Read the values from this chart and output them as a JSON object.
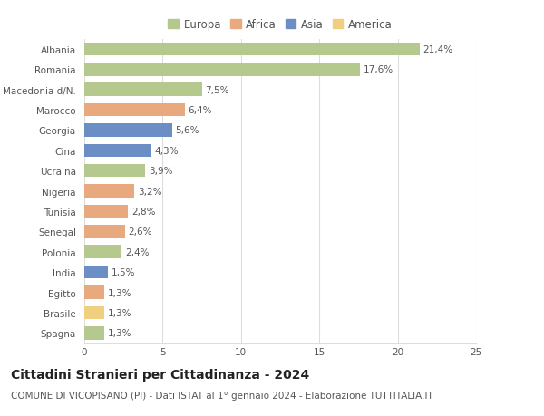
{
  "countries": [
    "Albania",
    "Romania",
    "Macedonia d/N.",
    "Marocco",
    "Georgia",
    "Cina",
    "Ucraina",
    "Nigeria",
    "Tunisia",
    "Senegal",
    "Polonia",
    "India",
    "Egitto",
    "Brasile",
    "Spagna"
  ],
  "values": [
    21.4,
    17.6,
    7.5,
    6.4,
    5.6,
    4.3,
    3.9,
    3.2,
    2.8,
    2.6,
    2.4,
    1.5,
    1.3,
    1.3,
    1.3
  ],
  "labels": [
    "21,4%",
    "17,6%",
    "7,5%",
    "6,4%",
    "5,6%",
    "4,3%",
    "3,9%",
    "3,2%",
    "2,8%",
    "2,6%",
    "2,4%",
    "1,5%",
    "1,3%",
    "1,3%",
    "1,3%"
  ],
  "continents": [
    "Europa",
    "Europa",
    "Europa",
    "Africa",
    "Asia",
    "Asia",
    "Europa",
    "Africa",
    "Africa",
    "Africa",
    "Europa",
    "Asia",
    "Africa",
    "America",
    "Europa"
  ],
  "continent_colors": {
    "Europa": "#b5c98e",
    "Africa": "#e8a97e",
    "Asia": "#6b8fc4",
    "America": "#f0d080"
  },
  "legend_order": [
    "Europa",
    "Africa",
    "Asia",
    "America"
  ],
  "title": "Cittadini Stranieri per Cittadinanza - 2024",
  "subtitle": "COMUNE DI VICOPISANO (PI) - Dati ISTAT al 1° gennaio 2024 - Elaborazione TUTTITALIA.IT",
  "xlim": [
    0,
    25
  ],
  "xticks": [
    0,
    5,
    10,
    15,
    20,
    25
  ],
  "background_color": "#ffffff",
  "grid_color": "#dddddd",
  "title_fontsize": 10,
  "subtitle_fontsize": 7.5,
  "bar_label_fontsize": 7.5,
  "tick_fontsize": 7.5,
  "legend_fontsize": 8.5
}
